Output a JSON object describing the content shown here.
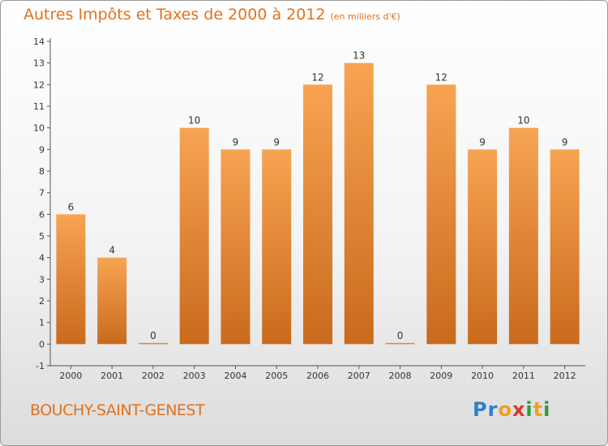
{
  "title": "Autres Impôts et Taxes de 2000 à 2012",
  "subtitle": "(en milliers d'€)",
  "place": "BOUCHY-SAINT-GENEST",
  "logo": {
    "p": "P",
    "r": "r",
    "o": "o",
    "x": "x",
    "i": "i",
    "t": "t",
    "i2": "i"
  },
  "colors": {
    "bar_top": "#f7a452",
    "bar_bottom": "#c96a1c",
    "title": "#e0721e"
  },
  "chart_data": {
    "type": "bar",
    "title": "Autres Impôts et Taxes de 2000 à 2012",
    "subtitle": "(en milliers d'€)",
    "xlabel": "",
    "ylabel": "",
    "categories": [
      "2000",
      "2001",
      "2002",
      "2003",
      "2004",
      "2005",
      "2006",
      "2007",
      "2008",
      "2009",
      "2010",
      "2011",
      "2012"
    ],
    "values": [
      6,
      4,
      0,
      10,
      9,
      9,
      12,
      13,
      0,
      12,
      9,
      10,
      9
    ],
    "ylim": [
      -1,
      14
    ],
    "yticks": [
      -1,
      0,
      1,
      2,
      3,
      4,
      5,
      6,
      7,
      8,
      9,
      10,
      11,
      12,
      13,
      14
    ],
    "grid": false
  }
}
